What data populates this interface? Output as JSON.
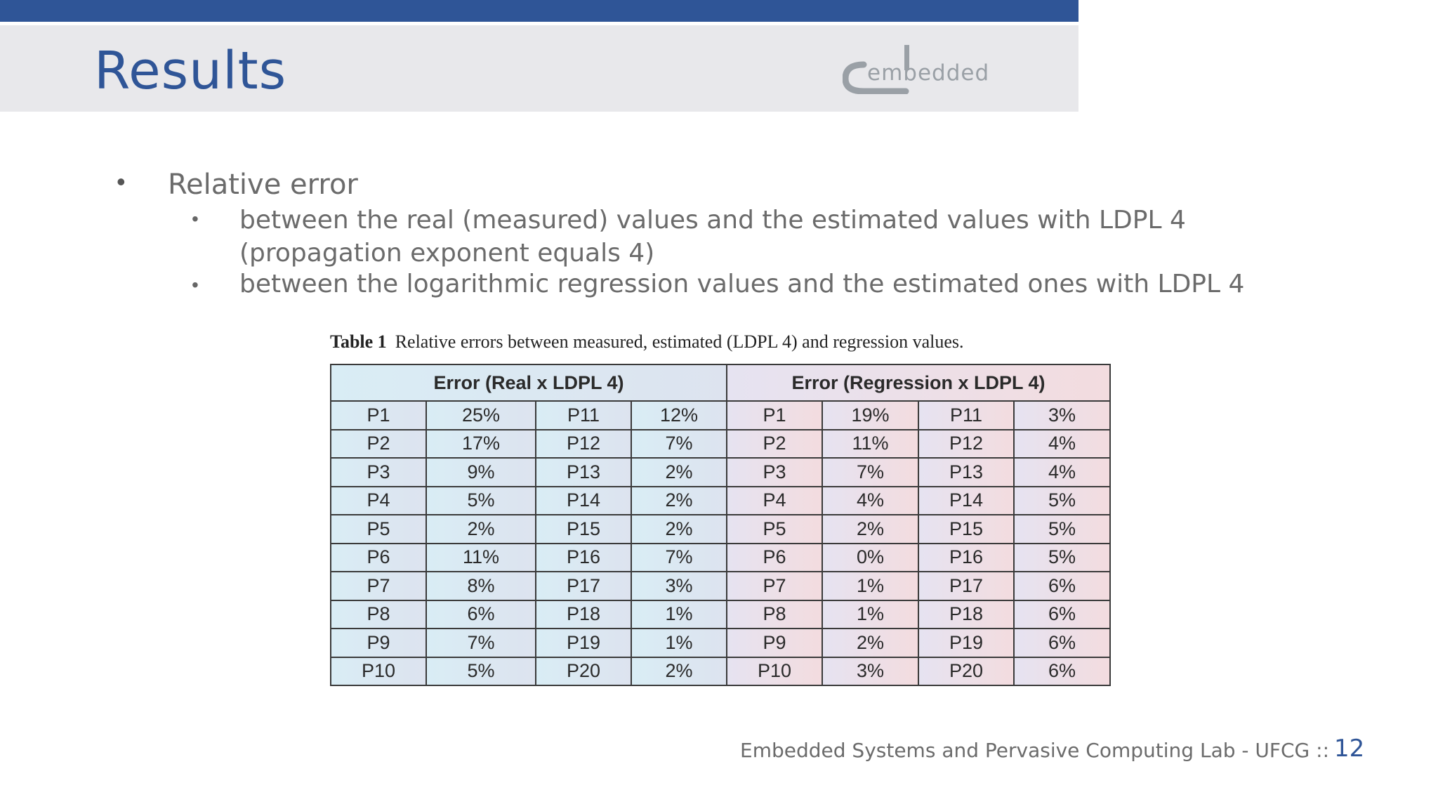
{
  "header": {
    "title": "Results",
    "logo_text": "embedded"
  },
  "bullets": {
    "main": "Relative error",
    "sub1": "between the real (measured) values and the estimated values with LDPL 4 (propagation exponent equals 4)",
    "sub2": "between the logarithmic regression values and the estimated ones with LDPL 4"
  },
  "table": {
    "caption_label": "Table 1",
    "caption_text": "Relative errors between measured, estimated (LDPL 4) and regression values.",
    "group_left": "Error (Real x LDPL 4)",
    "group_right": "Error (Regression x LDPL 4)",
    "rows": [
      [
        "P1",
        "25%",
        "P11",
        "12%",
        "P1",
        "19%",
        "P11",
        "3%"
      ],
      [
        "P2",
        "17%",
        "P12",
        "7%",
        "P2",
        "11%",
        "P12",
        "4%"
      ],
      [
        "P3",
        "9%",
        "P13",
        "2%",
        "P3",
        "7%",
        "P13",
        "4%"
      ],
      [
        "P4",
        "5%",
        "P14",
        "2%",
        "P4",
        "4%",
        "P14",
        "5%"
      ],
      [
        "P5",
        "2%",
        "P15",
        "2%",
        "P5",
        "2%",
        "P15",
        "5%"
      ],
      [
        "P6",
        "11%",
        "P16",
        "7%",
        "P6",
        "0%",
        "P16",
        "5%"
      ],
      [
        "P7",
        "8%",
        "P17",
        "3%",
        "P7",
        "1%",
        "P17",
        "6%"
      ],
      [
        "P8",
        "6%",
        "P18",
        "1%",
        "P8",
        "1%",
        "P18",
        "6%"
      ],
      [
        "P9",
        "7%",
        "P19",
        "1%",
        "P9",
        "2%",
        "P19",
        "6%"
      ],
      [
        "P10",
        "5%",
        "P20",
        "2%",
        "P10",
        "3%",
        "P20",
        "6%"
      ]
    ]
  },
  "footer": {
    "lab": "Embedded Systems and Pervasive Computing Lab - UFCG  ::",
    "page_number": "12"
  }
}
